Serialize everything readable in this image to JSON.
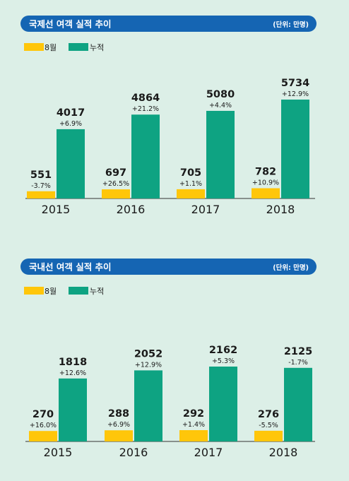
{
  "colors": {
    "background": "#dcefe7",
    "header_bar": "#1565b3",
    "monthly": "#ffc60a",
    "cumulative": "#0ea382",
    "text": "#1a1a1a",
    "axis": "#333333"
  },
  "legend": {
    "monthly": "8월",
    "cumulative": "누적"
  },
  "chart_data": [
    {
      "type": "bar",
      "title": "국제선 여객 실적 추이",
      "unit": "(단위: 만명)",
      "categories": [
        "2015",
        "2016",
        "2017",
        "2018"
      ],
      "series": [
        {
          "name": "8월",
          "values": [
            551,
            697,
            705,
            782
          ],
          "labels": [
            "551",
            "697",
            "705",
            "782"
          ],
          "changes": [
            "-3.7%",
            "+26.5%",
            "+1.1%",
            "+10.9%"
          ]
        },
        {
          "name": "누적",
          "values": [
            4017,
            4864,
            5080,
            5734
          ],
          "labels": [
            "4017",
            "4864",
            "5080",
            "5734"
          ],
          "changes": [
            "+6.9%",
            "+21.2%",
            "+4.4%",
            "+12.9%"
          ]
        }
      ],
      "legend_position": "top-left",
      "grid": false
    },
    {
      "type": "bar",
      "title": "국내선 여객 실적 추이",
      "unit": "(단위: 만명)",
      "categories": [
        "2015",
        "2016",
        "2017",
        "2018"
      ],
      "series": [
        {
          "name": "8월",
          "values": [
            270,
            288,
            292,
            276
          ],
          "labels": [
            "270",
            "288",
            "292",
            "276"
          ],
          "changes": [
            "+16.0%",
            "+6.9%",
            "+1.4%",
            "-5.5%"
          ]
        },
        {
          "name": "누적",
          "values": [
            1818,
            2052,
            2162,
            2125
          ],
          "labels": [
            "1818",
            "2052",
            "2162",
            "2125"
          ],
          "changes": [
            "+12.6%",
            "+12.9%",
            "+5.3%",
            "-1.7%"
          ]
        }
      ],
      "legend_position": "top-left",
      "grid": false
    }
  ]
}
